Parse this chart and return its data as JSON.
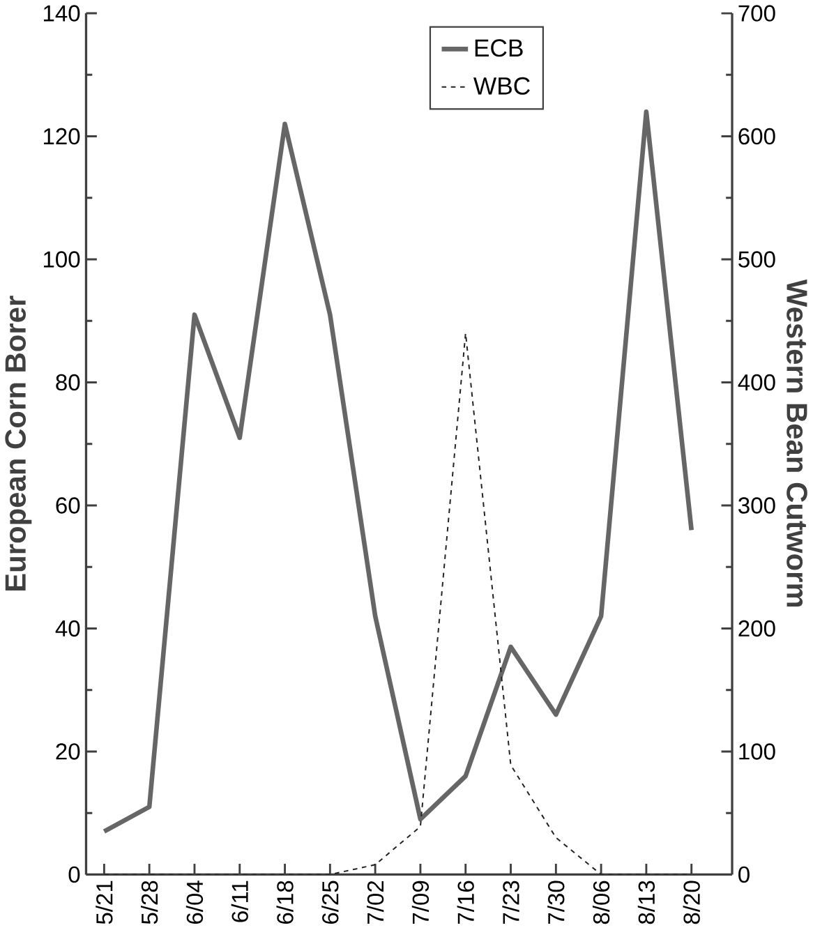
{
  "chart_data": {
    "type": "line",
    "categories": [
      "5/21",
      "5/28",
      "6/04",
      "6/11",
      "6/18",
      "6/25",
      "7/02",
      "7/09",
      "7/16",
      "7/23",
      "7/30",
      "8/06",
      "8/13",
      "8/20"
    ],
    "series": [
      {
        "name": "ECB",
        "color": "#666666",
        "line_style": "solid",
        "values": [
          7,
          11,
          91,
          71,
          122,
          91,
          42,
          9,
          16,
          37,
          26,
          42,
          124,
          56
        ]
      },
      {
        "name": "WBC",
        "color": "#222222",
        "line_style": "dashed",
        "axis": "y2",
        "values": [
          0,
          0,
          0,
          0,
          0,
          0,
          8,
          39,
          440,
          89,
          30,
          0,
          0,
          0
        ]
      }
    ],
    "ylabel": "European Corn Borer",
    "y2label": "Western Bean Cutworm",
    "ylim": [
      0,
      140
    ],
    "yticks": [
      0,
      20,
      40,
      60,
      80,
      100,
      120,
      140
    ],
    "y2lim": [
      0,
      700
    ],
    "y2ticks": [
      0,
      100,
      200,
      300,
      400,
      500,
      600,
      700
    ],
    "legend": "top"
  }
}
